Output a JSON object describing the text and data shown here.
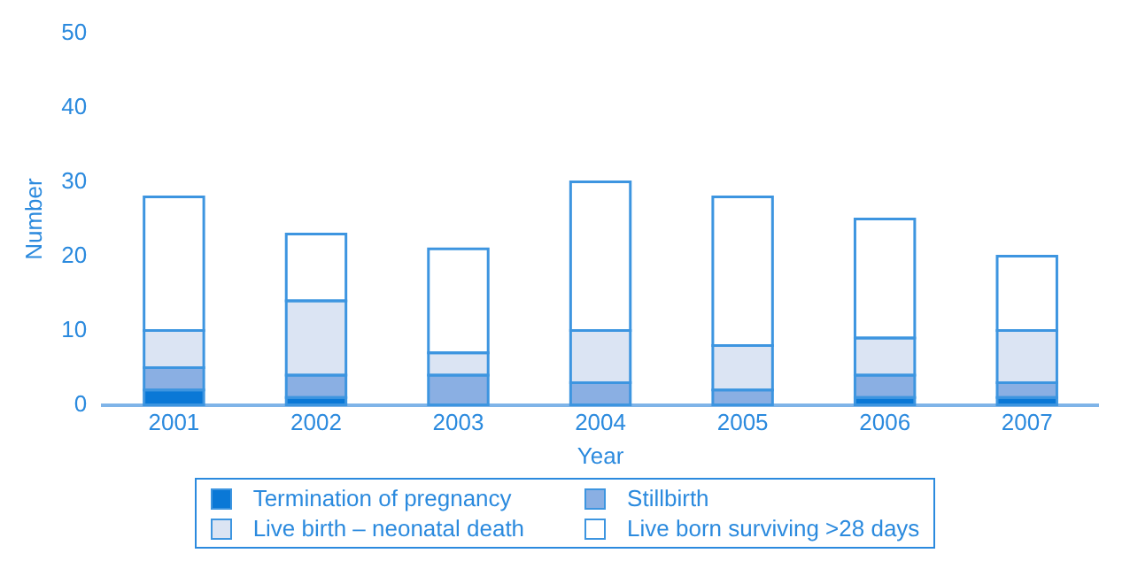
{
  "chart_data": {
    "type": "bar",
    "stacked": true,
    "xlabel": "Year",
    "ylabel": "Number",
    "categories": [
      "2001",
      "2002",
      "2003",
      "2004",
      "2005",
      "2006",
      "2007"
    ],
    "series": [
      {
        "name": "Termination of pregnancy",
        "color": "#0a78d6",
        "values": [
          2,
          1,
          0,
          0,
          0,
          1,
          1
        ]
      },
      {
        "name": "Stillbirth",
        "color": "#8aafe3",
        "values": [
          3,
          3,
          4,
          3,
          2,
          3,
          2
        ]
      },
      {
        "name": "Live birth – neonatal death",
        "color": "#dbe4f3",
        "values": [
          5,
          10,
          3,
          7,
          6,
          5,
          7
        ]
      },
      {
        "name": "Live born surviving >28 days",
        "color": "#ffffff",
        "values": [
          18,
          9,
          14,
          20,
          20,
          16,
          10
        ]
      }
    ],
    "ylim": [
      0,
      50
    ],
    "yticks": [
      0,
      10,
      20,
      30,
      40,
      50
    ],
    "grid": false,
    "legend": "bottom"
  }
}
